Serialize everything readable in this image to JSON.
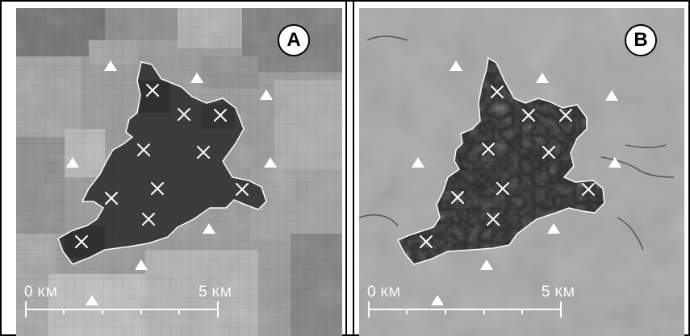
{
  "panels": [
    {
      "id": "A",
      "label": "A",
      "scale": {
        "start_value": "0",
        "start_unit": "КМ",
        "end_value": "5",
        "end_unit": "КМ"
      },
      "marker_colors": {
        "outline": "#ffffff",
        "cross": "#ffffff",
        "triangle": "#ffffff"
      },
      "imagery_style": "coarse-pixel"
    },
    {
      "id": "B",
      "label": "B",
      "scale": {
        "start_value": "0",
        "start_unit": "КМ",
        "end_value": "5",
        "end_unit": "КМ"
      },
      "marker_colors": {
        "outline": "#ffffff",
        "cross": "#ffffff",
        "triangle": "#ffffff"
      },
      "imagery_style": "fine-texture"
    }
  ],
  "legend_symbols": {
    "inside_marker": "cross",
    "outside_marker": "triangle"
  }
}
